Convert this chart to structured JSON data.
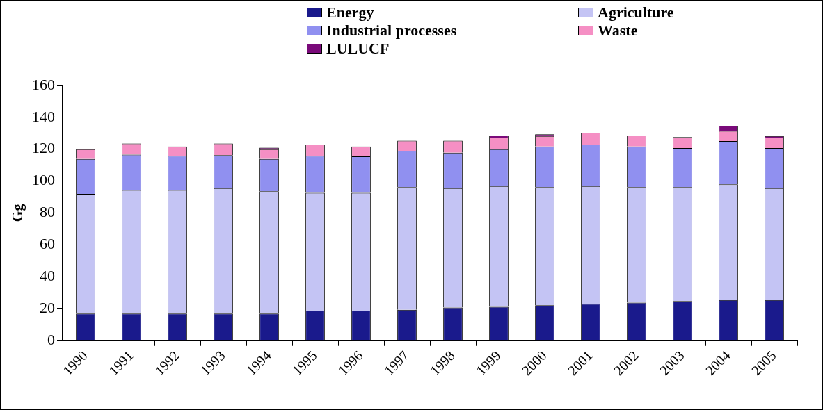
{
  "chart_data": {
    "type": "bar",
    "stacked": true,
    "ylabel": "Gg",
    "legend": "top",
    "grid": false,
    "categories": [
      "1990",
      "1991",
      "1992",
      "1993",
      "1994",
      "1995",
      "1996",
      "1997",
      "1998",
      "1999",
      "2000",
      "2001",
      "2002",
      "2003",
      "2004",
      "2005"
    ],
    "ylim": [
      0,
      160
    ],
    "yticks": [
      0,
      20,
      40,
      60,
      80,
      100,
      120,
      140,
      160
    ],
    "series": [
      {
        "name": "Energy",
        "color": "#1a1a8c",
        "values": [
          16.8,
          16.8,
          16.8,
          16.8,
          16.8,
          18.6,
          18.6,
          19.2,
          20.6,
          21.0,
          22.0,
          22.9,
          23.7,
          24.6,
          25.3,
          25.3
        ]
      },
      {
        "name": "Agriculture",
        "color": "#c4c4f4",
        "values": [
          75.1,
          77.5,
          77.5,
          78.7,
          76.8,
          74.0,
          74.0,
          77.0,
          74.9,
          75.9,
          74.2,
          74.0,
          72.5,
          71.6,
          72.6,
          70.2
        ]
      },
      {
        "name": "Industrial processes",
        "color": "#9090f0",
        "values": [
          22.0,
          22.3,
          21.5,
          20.8,
          20.3,
          23.2,
          22.9,
          22.8,
          22.3,
          23.1,
          25.5,
          26.0,
          25.5,
          24.5,
          27.2,
          25.2
        ]
      },
      {
        "name": "Waste",
        "color": "#f58fc4",
        "values": [
          6.1,
          7.0,
          5.9,
          7.3,
          6.1,
          7.1,
          6.2,
          6.3,
          7.5,
          7.3,
          6.6,
          7.4,
          6.9,
          6.9,
          6.3,
          6.6
        ]
      },
      {
        "name": "LULUCF",
        "color": "#7a0a7a",
        "values": [
          0,
          0,
          0,
          0,
          1.0,
          0,
          0,
          0,
          0,
          1.3,
          1.1,
          0,
          0,
          0,
          3.3,
          1.0
        ]
      }
    ]
  }
}
